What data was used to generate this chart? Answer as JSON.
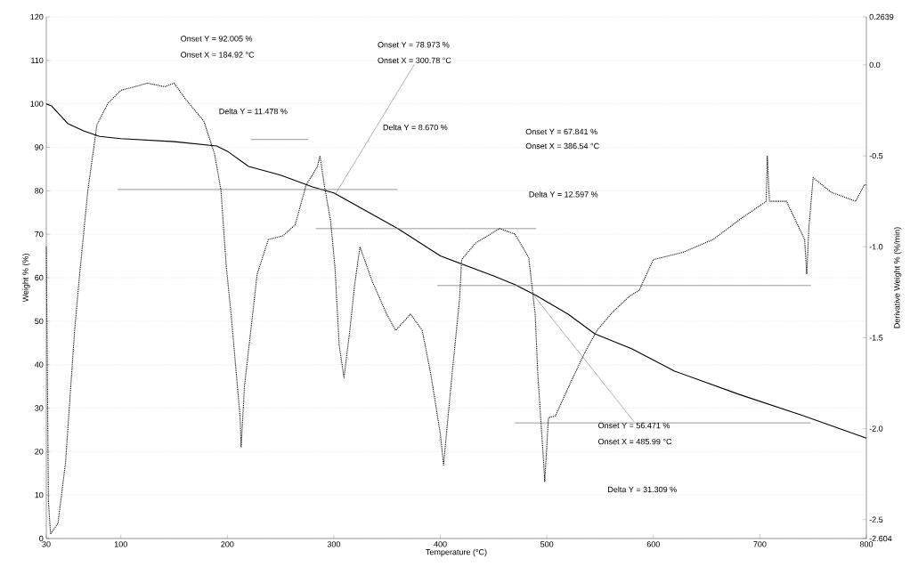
{
  "chart_data": {
    "type": "line",
    "xlabel": "Temperature (°C)",
    "ylabel": "Weight % (%)",
    "y2label": "Derivative Weight % (%/min)",
    "xlim": [
      30,
      800
    ],
    "xticks": [
      30,
      100,
      200,
      300,
      400,
      500,
      600,
      700,
      800
    ],
    "ylim": [
      0,
      120
    ],
    "yticks": [
      0,
      10,
      20,
      30,
      40,
      50,
      60,
      70,
      80,
      90,
      100,
      110,
      120
    ],
    "y2lim": [
      -2.604,
      0.2639
    ],
    "y2ticks": [
      -2.604,
      -2.5,
      {
        "value": -2.0,
        "label": "-2.0"
      },
      -1.5,
      {
        "value": -1.0,
        "label": "-1.0"
      },
      -0.5,
      {
        "value": 0.0,
        "label": "0.0"
      },
      0.2639
    ],
    "grid": "y",
    "series": [
      {
        "color": "#000000",
        "line_style": "solid",
        "x": [
          30,
          35,
          50,
          65,
          80,
          100,
          150,
          190,
          200,
          220,
          250,
          280,
          300,
          330,
          360,
          400,
          450,
          470,
          490,
          520,
          545,
          580,
          620,
          680,
          740,
          800
        ],
        "values": [
          100,
          99.5,
          95.5,
          93.8,
          92.5,
          92.0,
          91.3,
          90.3,
          89.1,
          85.6,
          83.6,
          80.9,
          79.5,
          75.4,
          71.3,
          65.0,
          60.4,
          58.4,
          55.9,
          51.6,
          47.1,
          43.6,
          38.5,
          33.2,
          28.3,
          23.1
        ]
      },
      {
        "color": "#000000",
        "line_style": "dotted",
        "axis": "y2",
        "x": [
          30,
          32,
          34,
          41,
          48,
          56.6,
          61,
          69,
          77.5,
          88,
          100,
          113,
          125,
          141,
          150,
          161,
          178,
          188,
          194,
          199,
          203.5,
          208,
          212,
          213,
          216,
          222,
          228,
          238.5,
          252,
          263.6,
          274,
          284.5,
          287,
          291,
          297,
          301,
          305,
          309.5,
          315,
          319.5,
          324.5,
          336,
          349.6,
          358,
          372,
          383,
          391,
          400,
          403,
          411,
          418,
          420,
          433,
          455.6,
          470,
          483,
          489,
          491.5,
          497,
          498,
          501.5,
          508,
          522,
          536.6,
          547,
          561.6,
          578,
          586.6,
          600,
          628,
          656,
          683.5,
          706,
          707,
          709,
          725,
          742,
          744,
          746,
          750,
          767,
          790,
          798,
          800
        ],
        "values": [
          -1.0,
          -2.4,
          -2.58,
          -2.52,
          -2.19,
          -1.46,
          -1.17,
          -0.69,
          -0.33,
          -0.21,
          -0.14,
          -0.12,
          -0.1,
          -0.12,
          -0.1,
          -0.19,
          -0.31,
          -0.49,
          -0.69,
          -1.11,
          -1.37,
          -1.67,
          -1.94,
          -2.1,
          -1.77,
          -1.46,
          -1.15,
          -0.96,
          -0.94,
          -0.88,
          -0.66,
          -0.56,
          -0.5,
          -0.66,
          -0.86,
          -1.11,
          -1.54,
          -1.72,
          -1.46,
          -1.21,
          -1.0,
          -1.19,
          -1.37,
          -1.46,
          -1.37,
          -1.46,
          -1.7,
          -2.03,
          -2.2,
          -1.7,
          -1.29,
          -1.07,
          -0.98,
          -0.9,
          -0.93,
          -1.06,
          -1.37,
          -1.7,
          -2.19,
          -2.29,
          -1.94,
          -1.93,
          -1.75,
          -1.57,
          -1.46,
          -1.36,
          -1.27,
          -1.24,
          -1.07,
          -1.03,
          -0.96,
          -0.84,
          -0.75,
          -0.5,
          -0.75,
          -0.75,
          -0.96,
          -1.15,
          -0.9,
          -0.62,
          -0.7,
          -0.75,
          -0.66,
          -0.66
        ]
      },
      {
        "color": "#808080",
        "x": [
          222,
          276
        ],
        "values": [
          91.8,
          91.8
        ]
      },
      {
        "color": "#808080",
        "x": [
          97,
          360
        ],
        "values": [
          80.3,
          80.3
        ]
      },
      {
        "color": "#808080",
        "x": [
          283,
          490
        ],
        "values": [
          71.3,
          71.3
        ]
      },
      {
        "color": "#808080",
        "x": [
          397,
          748
        ],
        "values": [
          58.2,
          58.2
        ]
      },
      {
        "color": "#808080",
        "x": [
          470,
          748
        ],
        "values": [
          26.6,
          26.6
        ]
      }
    ],
    "annotations": [
      "Onset Y = 92.005 %",
      "Onset X = 184.92 °C",
      "Delta Y = 11.478 %",
      "Onset Y = 78.973 %",
      {
        "text": "Onset X = 300.78 °C",
        "x": 300.78,
        "y": 78.973
      },
      "Delta Y = 8.670 %",
      "Onset Y = 67.841 %",
      "Onset X = 386.54 °C",
      "Delta Y = 12.597 %",
      {
        "text": "Onset Y = 56.471 %",
        "x": 485.99,
        "y": 56.471
      },
      "Onset X = 485.99 °C",
      "Delta Y = 31.309 %"
    ]
  }
}
